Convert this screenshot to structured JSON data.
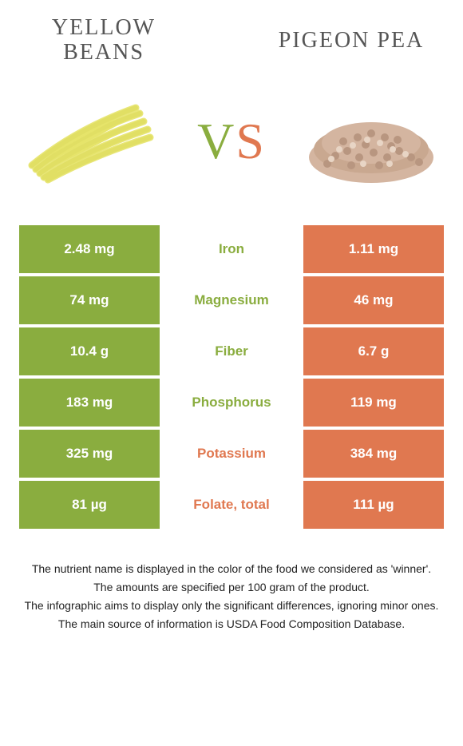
{
  "colors": {
    "green": "#8aad3f",
    "orange": "#e07850",
    "text": "#555555"
  },
  "header": {
    "left_title_line1": "Yellow",
    "left_title_line2": "beans",
    "right_title": "Pigeon pea"
  },
  "vs": {
    "v": "V",
    "s": "S"
  },
  "rows": [
    {
      "left": "2.48 mg",
      "label": "Iron",
      "right": "1.11 mg",
      "winner": "green"
    },
    {
      "left": "74 mg",
      "label": "Magnesium",
      "right": "46 mg",
      "winner": "green"
    },
    {
      "left": "10.4 g",
      "label": "Fiber",
      "right": "6.7 g",
      "winner": "green"
    },
    {
      "left": "183 mg",
      "label": "Phosphorus",
      "right": "119 mg",
      "winner": "green"
    },
    {
      "left": "325 mg",
      "label": "Potassium",
      "right": "384 mg",
      "winner": "orange"
    },
    {
      "left": "81 µg",
      "label": "Folate, total",
      "right": "111 µg",
      "winner": "orange"
    }
  ],
  "footer": {
    "line1": "The nutrient name is displayed in the color of the food we considered as 'winner'.",
    "line2": "The amounts are specified per 100 gram of the product.",
    "line3": "The infographic aims to display only the significant differences, ignoring minor ones.",
    "line4": "The main source of information is USDA Food Composition Database."
  }
}
